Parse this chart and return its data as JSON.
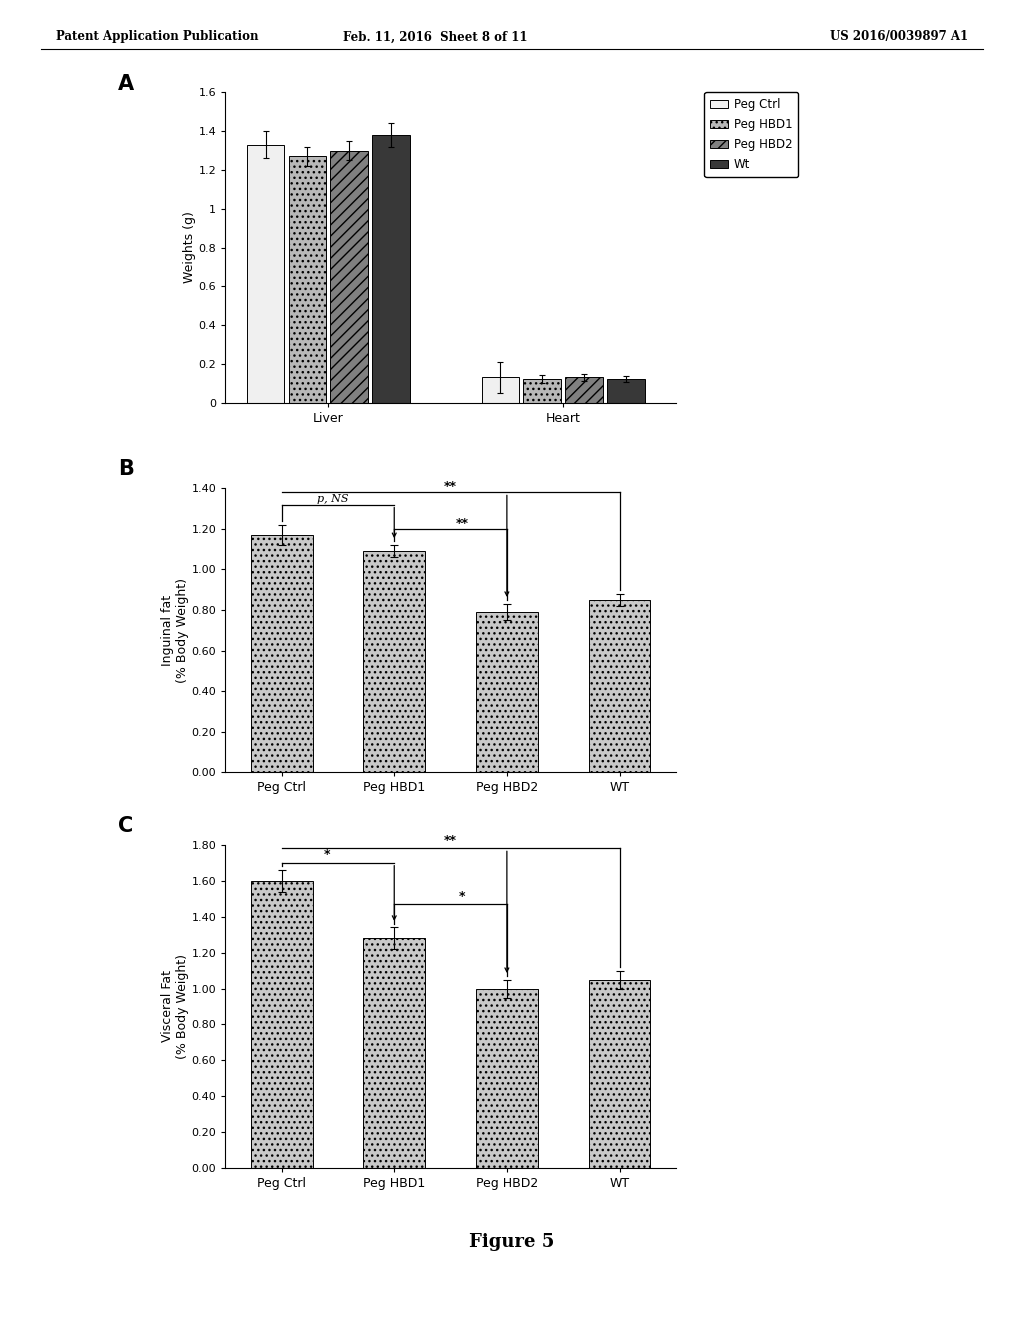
{
  "header_left": "Patent Application Publication",
  "header_mid": "Feb. 11, 2016  Sheet 8 of 11",
  "header_right": "US 2016/0039897 A1",
  "figure_label": "Figure 5",
  "panel_A": {
    "label": "A",
    "ylabel": "Weights (g)",
    "ylim": [
      0,
      1.6
    ],
    "yticks": [
      0,
      0.2,
      0.4,
      0.6,
      0.8,
      1.0,
      1.2,
      1.4,
      1.6
    ],
    "ytick_labels": [
      "0",
      "0.2",
      "0.4",
      "0.6",
      "0.8",
      "1",
      "1.2",
      "1.4",
      "1.6"
    ],
    "groups": [
      "Liver",
      "Heart"
    ],
    "series": [
      "Peg Ctrl",
      "Peg HBD1",
      "Peg HBD2",
      "Wt"
    ],
    "values": {
      "Liver": [
        1.33,
        1.27,
        1.3,
        1.38
      ],
      "Heart": [
        0.13,
        0.12,
        0.13,
        0.12
      ]
    },
    "errors": {
      "Liver": [
        0.07,
        0.05,
        0.05,
        0.06
      ],
      "Heart": [
        0.08,
        0.02,
        0.02,
        0.015
      ]
    },
    "colors": [
      "#f0f0f0",
      "#b8b8b8",
      "#808080",
      "#383838"
    ],
    "hatch": [
      "",
      "...",
      "///",
      ""
    ],
    "legend_pos": "upper right"
  },
  "panel_B": {
    "label": "B",
    "ylabel": "Inguinal fat\n(% Body Weight)",
    "ylim": [
      0,
      1.4
    ],
    "yticks": [
      0.0,
      0.2,
      0.4,
      0.6,
      0.8,
      1.0,
      1.2,
      1.4
    ],
    "categories": [
      "Peg Ctrl",
      "Peg HBD1",
      "Peg HBD2",
      "WT"
    ],
    "values": [
      1.17,
      1.09,
      0.79,
      0.85
    ],
    "errors": [
      0.05,
      0.03,
      0.04,
      0.03
    ],
    "bar_color": "#c8c8c8",
    "bar_hatch": "...",
    "annot_ns": "p, NS",
    "annot_sig1": "**",
    "annot_sig2": "**"
  },
  "panel_C": {
    "label": "C",
    "ylabel": "Visceral Fat\n(% Body Weight)",
    "ylim": [
      0,
      1.8
    ],
    "yticks": [
      0.0,
      0.2,
      0.4,
      0.6,
      0.8,
      1.0,
      1.2,
      1.4,
      1.6,
      1.8
    ],
    "categories": [
      "Peg Ctrl",
      "Peg HBD1",
      "Peg HBD2",
      "WT"
    ],
    "values": [
      1.6,
      1.28,
      1.0,
      1.05
    ],
    "errors": [
      0.06,
      0.06,
      0.05,
      0.05
    ],
    "bar_color": "#c8c8c8",
    "bar_hatch": "...",
    "annot_sig1": "*",
    "annot_sig2": "**",
    "annot_sig3": "*"
  },
  "bg_color": "#ffffff",
  "text_color": "#000000"
}
